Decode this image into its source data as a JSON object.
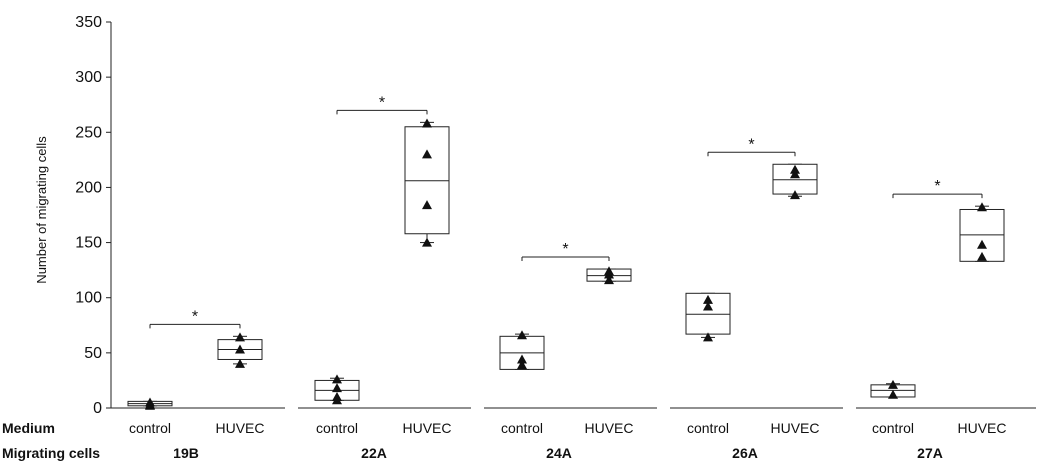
{
  "chart_data": {
    "type": "box",
    "ylabel": "Number of migrating cells",
    "ylim": [
      0,
      350
    ],
    "yticks": [
      0,
      50,
      100,
      150,
      200,
      250,
      300,
      350
    ],
    "row_labels": {
      "medium": "Medium",
      "cells": "Migrating cells"
    },
    "significance_marker": "*",
    "groups": [
      {
        "name": "19B",
        "significant": true,
        "boxes": [
          {
            "medium": "control",
            "q1": 2,
            "median": 4,
            "q3": 6,
            "whisker_low": 2,
            "whisker_high": 6,
            "points": [
              2,
              3,
              5
            ]
          },
          {
            "medium": "HUVEC",
            "q1": 44,
            "median": 53,
            "q3": 62,
            "whisker_low": 40,
            "whisker_high": 65,
            "points": [
              40,
              53,
              64
            ]
          }
        ]
      },
      {
        "name": "22A",
        "significant": true,
        "boxes": [
          {
            "medium": "control",
            "q1": 7,
            "median": 16,
            "q3": 25,
            "whisker_low": 7,
            "whisker_high": 27,
            "points": [
              7,
              10,
              18,
              26
            ]
          },
          {
            "medium": "HUVEC",
            "q1": 158,
            "median": 206,
            "q3": 255,
            "whisker_low": 150,
            "whisker_high": 259,
            "points": [
              150,
              184,
              230,
              258
            ]
          }
        ]
      },
      {
        "name": "24A",
        "significant": true,
        "boxes": [
          {
            "medium": "control",
            "q1": 35,
            "median": 50,
            "q3": 65,
            "whisker_low": 35,
            "whisker_high": 67,
            "points": [
              39,
              44,
              66
            ]
          },
          {
            "medium": "HUVEC",
            "q1": 115,
            "median": 120,
            "q3": 126,
            "whisker_low": 115,
            "whisker_high": 126,
            "points": [
              116,
              121,
              124
            ]
          }
        ]
      },
      {
        "name": "26A",
        "significant": true,
        "boxes": [
          {
            "medium": "control",
            "q1": 67,
            "median": 85,
            "q3": 104,
            "whisker_low": 64,
            "whisker_high": 104,
            "points": [
              64,
              92,
              98
            ]
          },
          {
            "medium": "HUVEC",
            "q1": 194,
            "median": 207,
            "q3": 221,
            "whisker_low": 192,
            "whisker_high": 221,
            "points": [
              193,
              212,
              216
            ]
          }
        ]
      },
      {
        "name": "27A",
        "significant": true,
        "boxes": [
          {
            "medium": "control",
            "q1": 10,
            "median": 16,
            "q3": 21,
            "whisker_low": 10,
            "whisker_high": 22,
            "points": [
              12,
              21
            ]
          },
          {
            "medium": "HUVEC",
            "q1": 133,
            "median": 157,
            "q3": 180,
            "whisker_low": 133,
            "whisker_high": 183,
            "points": [
              137,
              148,
              182
            ]
          }
        ]
      }
    ]
  }
}
